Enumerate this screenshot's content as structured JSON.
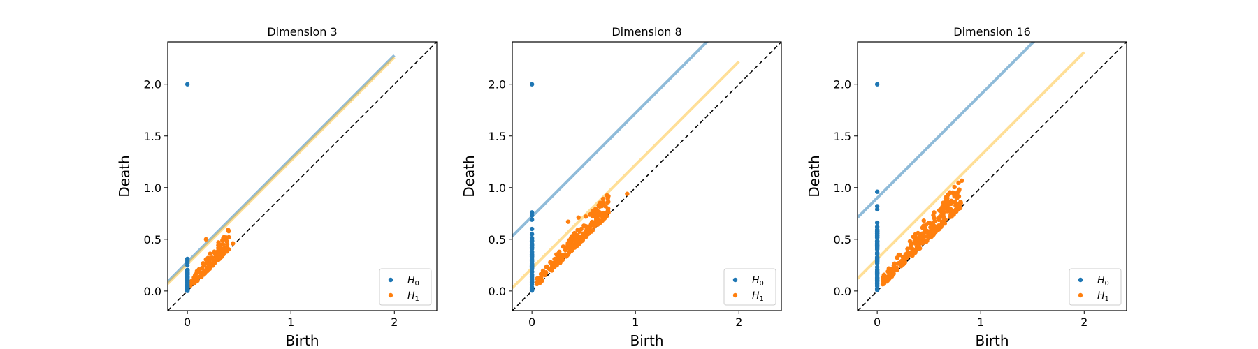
{
  "chart_data": [
    {
      "type": "scatter",
      "title": "Dimension 3",
      "xlabel": "Birth",
      "ylabel": "Death",
      "xlim": [
        -0.19,
        2.41
      ],
      "ylim": [
        -0.19,
        2.41
      ],
      "xticks": [
        0,
        1,
        2
      ],
      "yticks": [
        0.0,
        0.5,
        1.0,
        1.5,
        2.0
      ],
      "legend_position": "bottom-right",
      "diagonal": {
        "from": -0.19,
        "to": 2.41,
        "style": "dashed",
        "color": "#000000"
      },
      "confidence_lines": [
        {
          "series": "H0",
          "color": "#1f77b4",
          "offset": 0.28,
          "x_start": -0.19,
          "x_end": 2.0
        },
        {
          "series": "H1",
          "color": "#ffbf2f",
          "offset": 0.26,
          "x_start": -0.19,
          "x_end": 2.0
        }
      ],
      "series": [
        {
          "name": "H0",
          "color": "#1f77b4",
          "birth": 0,
          "isolated_deaths": [
            2.0,
            0.31,
            0.29,
            0.27,
            0.25
          ],
          "cluster": {
            "min": 0.0,
            "max": 0.22,
            "count": 45
          }
        },
        {
          "name": "H1",
          "color": "#ff7f0e",
          "points": [
            [
              0.18,
              0.5
            ],
            [
              0.3,
              0.47
            ],
            [
              0.44,
              0.46
            ],
            [
              0.38,
              0.39
            ],
            [
              0.22,
              0.36
            ],
            [
              0.26,
              0.38
            ],
            [
              0.31,
              0.37
            ],
            [
              0.34,
              0.35
            ]
          ],
          "cloud": {
            "x_min": 0.02,
            "x_max": 0.4,
            "gap_min": 0.0,
            "gap_max": 0.2,
            "count": 130
          }
        }
      ]
    },
    {
      "type": "scatter",
      "title": "Dimension 8",
      "xlabel": "Birth",
      "ylabel": "Death",
      "xlim": [
        -0.19,
        2.41
      ],
      "ylim": [
        -0.19,
        2.41
      ],
      "xticks": [
        0,
        1,
        2
      ],
      "yticks": [
        0.0,
        0.5,
        1.0,
        1.5,
        2.0
      ],
      "legend_position": "bottom-right",
      "diagonal": {
        "from": -0.19,
        "to": 2.41,
        "style": "dashed",
        "color": "#000000"
      },
      "confidence_lines": [
        {
          "series": "H0",
          "color": "#1f77b4",
          "offset": 0.72,
          "x_start": -0.19,
          "x_end": 2.0
        },
        {
          "series": "H1",
          "color": "#ffbf2f",
          "offset": 0.22,
          "x_start": -0.19,
          "x_end": 2.0
        }
      ],
      "series": [
        {
          "name": "H0",
          "color": "#1f77b4",
          "birth": 0,
          "isolated_deaths": [
            2.0,
            0.76,
            0.73,
            0.69,
            0.6,
            0.55
          ],
          "cluster": {
            "min": 0.0,
            "max": 0.52,
            "count": 60
          }
        },
        {
          "name": "H1",
          "color": "#ff7f0e",
          "points": [
            [
              0.92,
              0.94
            ],
            [
              0.35,
              0.67
            ],
            [
              0.45,
              0.71
            ],
            [
              0.52,
              0.72
            ],
            [
              0.6,
              0.75
            ],
            [
              0.66,
              0.73
            ],
            [
              0.74,
              0.76
            ]
          ],
          "cloud": {
            "x_min": 0.02,
            "x_max": 0.74,
            "gap_min": 0.0,
            "gap_max": 0.22,
            "count": 220
          }
        }
      ]
    },
    {
      "type": "scatter",
      "title": "Dimension 16",
      "xlabel": "Birth",
      "ylabel": "Death",
      "xlim": [
        -0.19,
        2.41
      ],
      "ylim": [
        -0.19,
        2.41
      ],
      "xticks": [
        0,
        1,
        2
      ],
      "yticks": [
        0.0,
        0.5,
        1.0,
        1.5,
        2.0
      ],
      "legend_position": "bottom-right",
      "diagonal": {
        "from": -0.19,
        "to": 2.41,
        "style": "dashed",
        "color": "#000000"
      },
      "confidence_lines": [
        {
          "series": "H0",
          "color": "#1f77b4",
          "offset": 0.9,
          "x_start": -0.19,
          "x_end": 2.0
        },
        {
          "series": "H1",
          "color": "#ffbf2f",
          "offset": 0.31,
          "x_start": -0.19,
          "x_end": 2.0
        }
      ],
      "series": [
        {
          "name": "H0",
          "color": "#1f77b4",
          "birth": 0,
          "isolated_deaths": [
            2.0,
            0.96,
            0.82,
            0.79,
            0.66,
            0.62
          ],
          "cluster": {
            "min": 0.0,
            "max": 0.6,
            "count": 60
          }
        },
        {
          "name": "H1",
          "color": "#ff7f0e",
          "points": [
            [
              0.7,
              0.84
            ],
            [
              0.75,
              0.86
            ],
            [
              0.8,
              0.84
            ],
            [
              0.55,
              0.76
            ],
            [
              0.6,
              0.78
            ],
            [
              0.65,
              0.8
            ],
            [
              0.45,
              0.68
            ]
          ],
          "cloud": {
            "x_min": 0.05,
            "x_max": 0.82,
            "gap_min": 0.0,
            "gap_max": 0.28,
            "count": 240
          }
        }
      ]
    }
  ]
}
